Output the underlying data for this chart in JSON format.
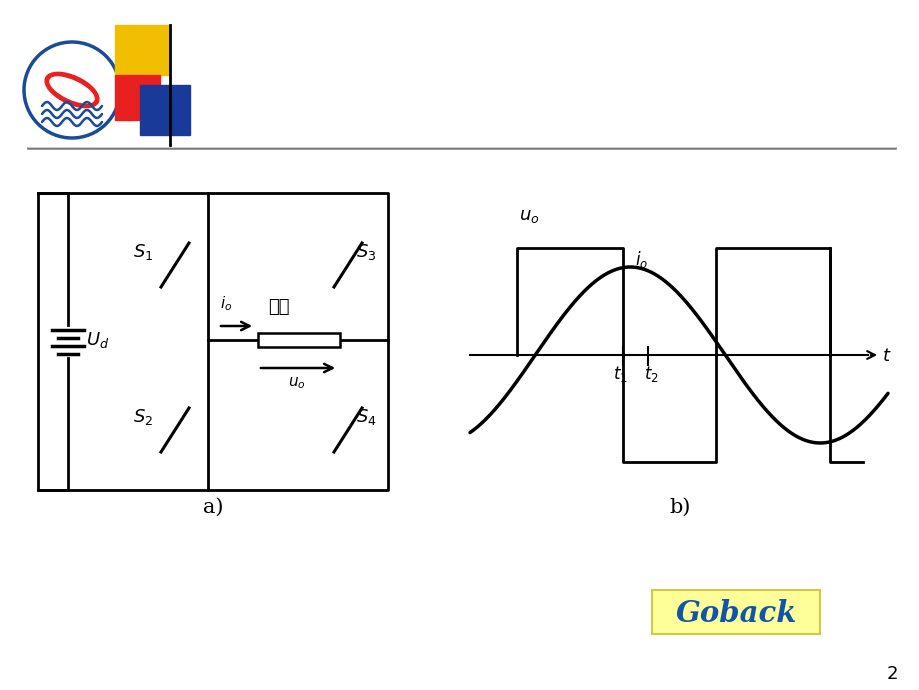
{
  "bg_color": "#ffffff",
  "circuit_color": "#000000",
  "goback_bg": "#ffff99",
  "goback_border": "#cccc44",
  "goback_text_color": "#1155aa",
  "goback_text": "Goback",
  "label_a": "a)",
  "label_b": "b)",
  "page_num": "2",
  "logo_yellow": "#f0c000",
  "logo_red": "#e82020",
  "logo_blue": "#1a3a9a",
  "logo_circle_blue": "#1a4a9a",
  "separator_color": "#777777"
}
